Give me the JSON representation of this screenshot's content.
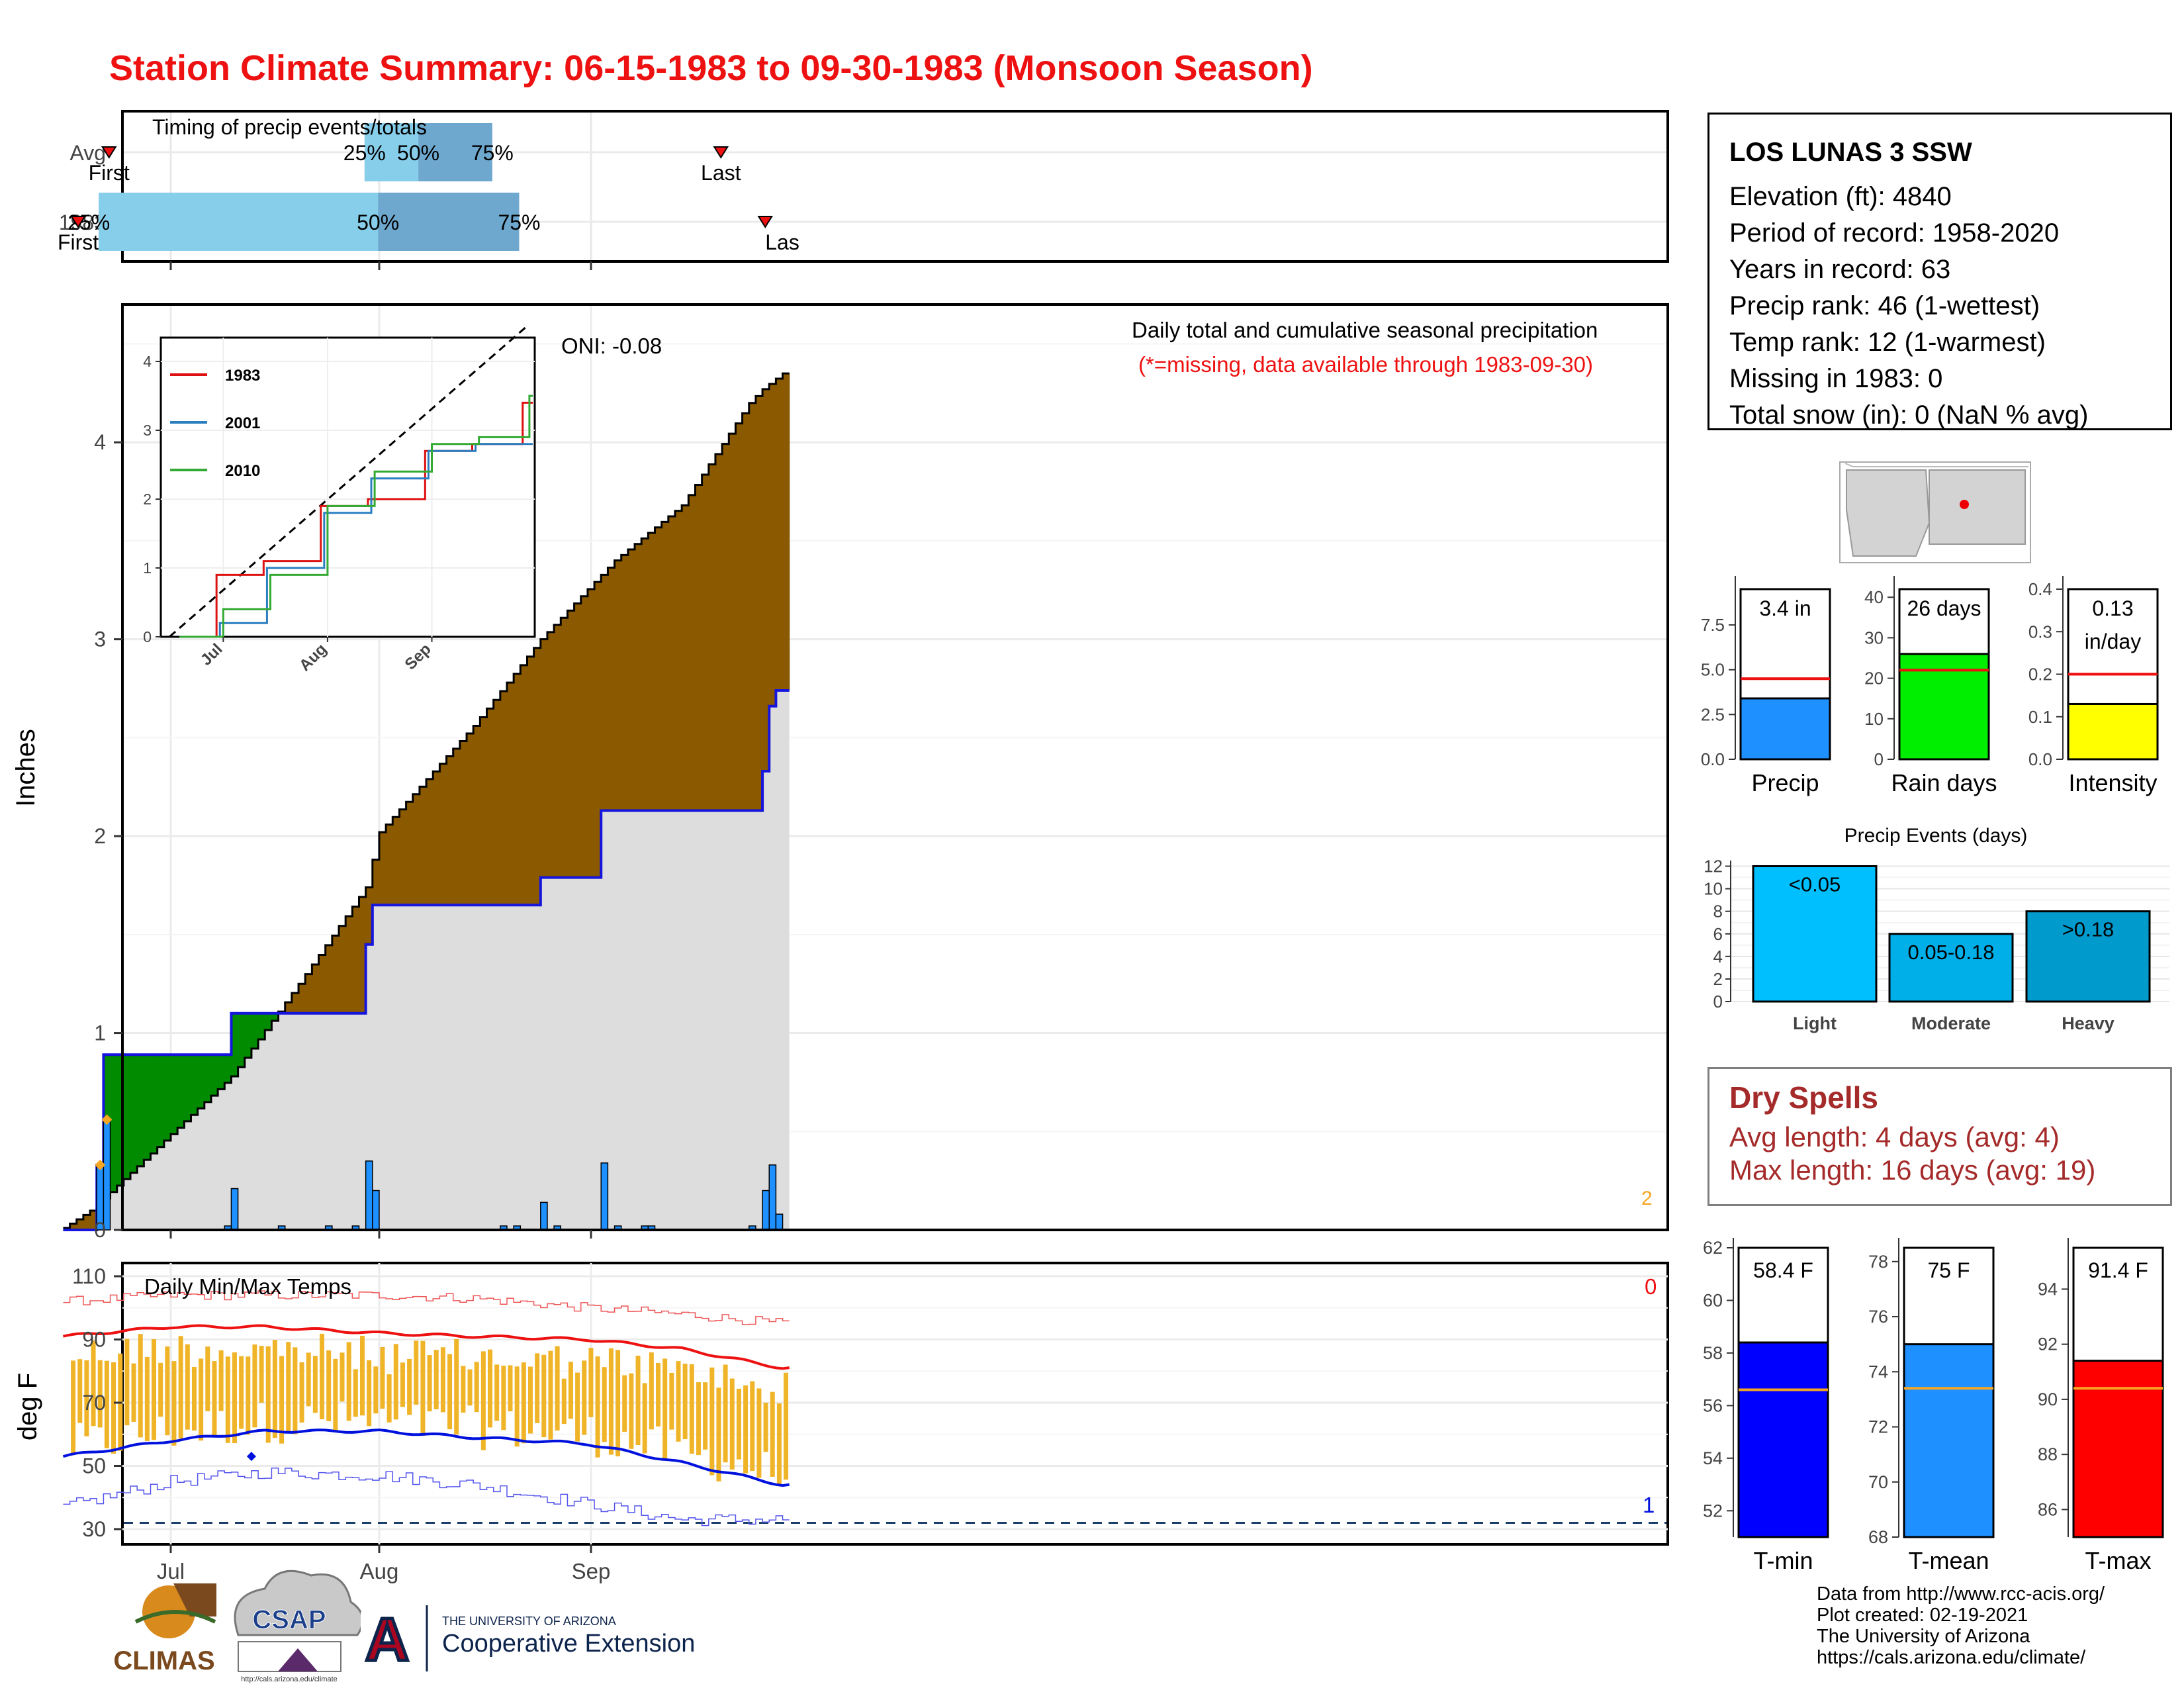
{
  "title": "Station Climate Summary: 06-15-1983 to 09-30-1983 (Monsoon Season)",
  "colors": {
    "title": "#ee1111",
    "avg_cum": "#dddddd",
    "above_avg": "#8b5a00",
    "below_avg": "#008b00",
    "daily_bar": "#1e90ff",
    "tmax_line": "#ee1111",
    "tmin_line": "#0011dd",
    "temp_bar": "#f0b429",
    "timing_light": "#87ceeb",
    "timing_dark": "#6fa8cf"
  },
  "timing": {
    "title": "Timing of precip events/totals",
    "rows": [
      {
        "label": "Avg",
        "first_date": "06-23",
        "last_date": "09-22",
        "p25": "07-31",
        "p50": "08-08",
        "p75": "08-19",
        "p25_label": "25%",
        "p50_label": "50%",
        "p75_label": "75%",
        "first_label": "First",
        "last_label": "Last"
      },
      {
        "label": "1983",
        "first_date": "06-19",
        "last_date": "09-28",
        "p25": "06-20",
        "p50": "08-02",
        "p75": "08-23",
        "p25_label": "25%",
        "p50_label": "50%",
        "p75_label": "75%",
        "first_label": "First",
        "last_label": "Las"
      }
    ]
  },
  "main_chart": {
    "ylabel": "Inches",
    "annotation_title": "Daily total and cumulative seasonal precipitation",
    "annotation_missing": "(*=missing, data available through 1983-09-30)",
    "oni": "ONI: -0.08",
    "ylim": [
      0,
      4.7
    ],
    "yticks": [
      "0",
      "1",
      "2",
      "3",
      "4"
    ],
    "xticks": [
      "Jul",
      "Aug",
      "Sep"
    ],
    "missing_marker": "2"
  },
  "inset": {
    "yticks": [
      "0",
      "1",
      "2",
      "3",
      "4"
    ],
    "xticks": [
      "Jul",
      "Aug",
      "Sep"
    ],
    "legend": [
      {
        "name": "1983",
        "color": "#dd1111"
      },
      {
        "name": "2001",
        "color": "#2b7fc0"
      },
      {
        "name": "2010",
        "color": "#33aa33"
      }
    ]
  },
  "temp_chart": {
    "title": "Daily Min/Max Temps",
    "ylabel": "deg F",
    "yticks": [
      "30",
      "50",
      "70",
      "90",
      "110"
    ],
    "count_max": "0",
    "count_min": "1"
  },
  "station": {
    "name": "LOS LUNAS 3 SSW",
    "lines": [
      "Elevation (ft): 4840",
      "Period of record: 1958-2020",
      "Years in record: 63",
      "Precip rank: 46 (1-wettest)",
      "Temp rank: 12 (1-warmest)",
      "Missing in 1983: 0",
      "Total snow (in): 0 (NaN % avg)"
    ]
  },
  "bars_small": [
    {
      "label": "Precip",
      "value_text": "3.4 in",
      "value": 3.4,
      "avg": 4.5,
      "ymax": 9.5,
      "yticks": [
        "0.0",
        "2.5",
        "5.0",
        "7.5"
      ],
      "tickvals": [
        0,
        2.5,
        5,
        7.5
      ],
      "color": "#1e90ff"
    },
    {
      "label": "Rain days",
      "value_text": "26 days",
      "value": 26,
      "avg": 22,
      "ymax": 42,
      "yticks": [
        "0",
        "10",
        "20",
        "30",
        "40"
      ],
      "tickvals": [
        0,
        10,
        20,
        30,
        40
      ],
      "color": "#00ee00"
    },
    {
      "label": "Intensity",
      "value_text": "0.13",
      "value_text2": "in/day",
      "value": 0.13,
      "avg": 0.2,
      "ymax": 0.4,
      "yticks": [
        "0.0",
        "0.1",
        "0.2",
        "0.3",
        "0.4"
      ],
      "tickvals": [
        0,
        0.1,
        0.2,
        0.3,
        0.4
      ],
      "color": "#ffff00"
    }
  ],
  "events": {
    "title": "Precip Events (days)",
    "yticks": [
      "0",
      "2",
      "4",
      "6",
      "8",
      "10",
      "12"
    ],
    "bars": [
      {
        "cat": "Light",
        "range": "<0.05",
        "value": 12,
        "color": "#00bfff"
      },
      {
        "cat": "Moderate",
        "range": "0.05-0.18",
        "value": 6,
        "color": "#00aee8"
      },
      {
        "cat": "Heavy",
        "range": ">0.18",
        "value": 8,
        "color": "#009acd"
      }
    ]
  },
  "dry_spells": {
    "title": "Dry Spells",
    "avg_length": "Avg length: 4 days (avg: 4)",
    "max_length": "Max length: 16 days (avg: 19)"
  },
  "temp_bars": [
    {
      "label": "T-min",
      "value_text": "58.4 F",
      "value": 58.4,
      "avg": 56.6,
      "ymin": 51,
      "ymax": 62,
      "yticks": [
        "52",
        "54",
        "56",
        "58",
        "60",
        "62"
      ],
      "tickvals": [
        52,
        54,
        56,
        58,
        60,
        62
      ],
      "color": "#0000ff"
    },
    {
      "label": "T-mean",
      "value_text": "75 F",
      "value": 75,
      "avg": 73.4,
      "ymin": 68,
      "ymax": 78.5,
      "yticks": [
        "68",
        "70",
        "72",
        "74",
        "76",
        "78"
      ],
      "tickvals": [
        68,
        70,
        72,
        74,
        76,
        78
      ],
      "color": "#1e90ff"
    },
    {
      "label": "T-max",
      "value_text": "91.4 F",
      "value": 91.4,
      "avg": 90.4,
      "ymin": 85,
      "ymax": 95.5,
      "yticks": [
        "86",
        "88",
        "90",
        "92",
        "94"
      ],
      "tickvals": [
        86,
        88,
        90,
        92,
        94
      ],
      "color": "#ff0000"
    }
  ],
  "logos": {
    "climas": "CLIMAS",
    "csap": "CSAP",
    "csap_url": "http://cals.arizona.edu/climate",
    "ua_small": "THE UNIVERSITY OF ARIZONA",
    "ua_big": "Cooperative Extension",
    "ua_letter": "A"
  },
  "credits": [
    "Data from http://www.rcc-acis.org/",
    "Plot created: 02-19-2021",
    "The University of Arizona",
    "https://cals.arizona.edu/climate/"
  ],
  "chart_data": [
    {
      "type": "area",
      "title": "Daily total and cumulative seasonal precipitation",
      "ylabel": "Inches",
      "ylim": [
        0,
        4.7
      ],
      "x_dates": [
        "06-15",
        "06-20",
        "06-21",
        "07-10",
        "07-20",
        "07-30",
        "08-01",
        "08-15",
        "08-25",
        "09-05",
        "09-15",
        "09-25",
        "09-27",
        "09-30"
      ],
      "series": [
        {
          "name": "1983",
          "values": [
            0.03,
            0.88,
            0.88,
            1.1,
            1.27,
            1.87,
            1.89,
            1.9,
            2.2,
            2.6,
            2.7,
            2.78,
            3.4,
            3.4
          ]
        },
        {
          "name": "Average",
          "values": [
            0.01,
            0.12,
            0.16,
            0.78,
            1.25,
            1.74,
            2.02,
            2.56,
            3.0,
            3.4,
            3.68,
            4.2,
            4.27,
            4.35
          ]
        }
      ],
      "daily_bars": [
        {
          "date": "06-20",
          "value": 0.33
        },
        {
          "date": "06-21",
          "value": 0.56
        },
        {
          "date": "07-10",
          "value": 0.21
        },
        {
          "date": "07-30",
          "value": 0.35
        },
        {
          "date": "07-31",
          "value": 0.2
        },
        {
          "date": "08-25",
          "value": 0.14
        },
        {
          "date": "09-03",
          "value": 0.34
        },
        {
          "date": "09-27",
          "value": 0.2
        },
        {
          "date": "09-28",
          "value": 0.33
        },
        {
          "date": "09-29",
          "value": 0.08
        }
      ]
    },
    {
      "type": "line",
      "title": "Daily Min/Max Temps",
      "ylabel": "deg F",
      "ylim": [
        28,
        110
      ],
      "x_dates": [
        "06-15",
        "07-01",
        "07-15",
        "08-01",
        "08-15",
        "09-01",
        "09-15",
        "09-30"
      ],
      "series": [
        {
          "name": "Avg max",
          "values": [
            91,
            94,
            94,
            92,
            91,
            90,
            87,
            81
          ]
        },
        {
          "name": "Avg min",
          "values": [
            53,
            58,
            61,
            61,
            59,
            57,
            51,
            44
          ]
        },
        {
          "name": "Record max",
          "values": [
            102,
            104,
            104,
            104,
            103,
            100,
            98,
            95
          ]
        },
        {
          "name": "Record min",
          "values": [
            37,
            45,
            48,
            47,
            44,
            38,
            33,
            33
          ]
        }
      ]
    },
    {
      "type": "line",
      "title": "Cumulative precipitation comparison",
      "x_dates": [
        "06-15",
        "07-01",
        "07-15",
        "08-01",
        "08-15",
        "09-01",
        "09-15",
        "09-30"
      ],
      "series": [
        {
          "name": "1983",
          "values": [
            0.0,
            0.9,
            1.1,
            1.9,
            2.0,
            2.7,
            2.8,
            3.4
          ]
        },
        {
          "name": "2001",
          "values": [
            0.0,
            0.2,
            1.0,
            1.8,
            2.3,
            2.7,
            2.8,
            2.8
          ]
        },
        {
          "name": "2010",
          "values": [
            0.0,
            0.4,
            0.9,
            1.9,
            2.4,
            2.8,
            2.9,
            3.5
          ]
        }
      ]
    },
    {
      "type": "bar",
      "title": "Precip Events (days)",
      "categories": [
        "Light",
        "Moderate",
        "Heavy"
      ],
      "values": [
        12,
        6,
        8
      ]
    }
  ]
}
